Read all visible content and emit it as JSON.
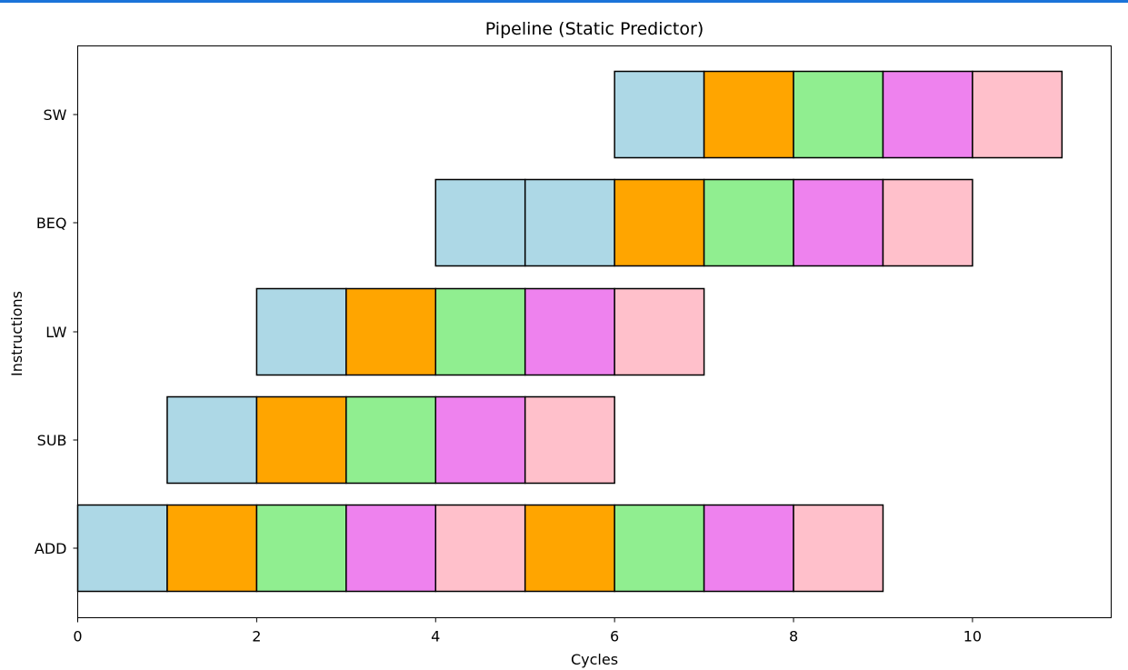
{
  "chart_data": {
    "type": "bar",
    "orientation": "horizontal",
    "stacked": true,
    "title": "Pipeline (Static Predictor)",
    "xlabel": "Cycles",
    "ylabel": "Instructions",
    "xlim": [
      0,
      11.55
    ],
    "xticks": [
      0,
      2,
      4,
      6,
      8,
      10
    ],
    "grid": false,
    "categories": [
      "ADD",
      "SUB",
      "LW",
      "BEQ",
      "SW"
    ],
    "bars": [
      {
        "instruction": "ADD",
        "segments": [
          {
            "start": 0,
            "end": 1,
            "color": "#add8e6"
          },
          {
            "start": 1,
            "end": 2,
            "color": "#ffa500"
          },
          {
            "start": 2,
            "end": 3,
            "color": "#90ee90"
          },
          {
            "start": 3,
            "end": 4,
            "color": "#ee82ee"
          },
          {
            "start": 4,
            "end": 5,
            "color": "#ffc0cb"
          },
          {
            "start": 5,
            "end": 6,
            "color": "#ffa500"
          },
          {
            "start": 6,
            "end": 7,
            "color": "#90ee90"
          },
          {
            "start": 7,
            "end": 8,
            "color": "#ee82ee"
          },
          {
            "start": 8,
            "end": 9,
            "color": "#ffc0cb"
          }
        ]
      },
      {
        "instruction": "SUB",
        "segments": [
          {
            "start": 1,
            "end": 2,
            "color": "#add8e6"
          },
          {
            "start": 2,
            "end": 3,
            "color": "#ffa500"
          },
          {
            "start": 3,
            "end": 4,
            "color": "#90ee90"
          },
          {
            "start": 4,
            "end": 5,
            "color": "#ee82ee"
          },
          {
            "start": 5,
            "end": 6,
            "color": "#ffc0cb"
          }
        ]
      },
      {
        "instruction": "LW",
        "segments": [
          {
            "start": 2,
            "end": 3,
            "color": "#add8e6"
          },
          {
            "start": 3,
            "end": 4,
            "color": "#ffa500"
          },
          {
            "start": 4,
            "end": 5,
            "color": "#90ee90"
          },
          {
            "start": 5,
            "end": 6,
            "color": "#ee82ee"
          },
          {
            "start": 6,
            "end": 7,
            "color": "#ffc0cb"
          }
        ]
      },
      {
        "instruction": "BEQ",
        "segments": [
          {
            "start": 4,
            "end": 5,
            "color": "#add8e6"
          },
          {
            "start": 5,
            "end": 6,
            "color": "#add8e6"
          },
          {
            "start": 6,
            "end": 7,
            "color": "#ffa500"
          },
          {
            "start": 7,
            "end": 8,
            "color": "#90ee90"
          },
          {
            "start": 8,
            "end": 9,
            "color": "#ee82ee"
          },
          {
            "start": 9,
            "end": 10,
            "color": "#ffc0cb"
          }
        ]
      },
      {
        "instruction": "SW",
        "segments": [
          {
            "start": 6,
            "end": 7,
            "color": "#add8e6"
          },
          {
            "start": 7,
            "end": 8,
            "color": "#ffa500"
          },
          {
            "start": 8,
            "end": 9,
            "color": "#90ee90"
          },
          {
            "start": 9,
            "end": 10,
            "color": "#ee82ee"
          },
          {
            "start": 10,
            "end": 11,
            "color": "#ffc0cb"
          }
        ]
      }
    ]
  }
}
